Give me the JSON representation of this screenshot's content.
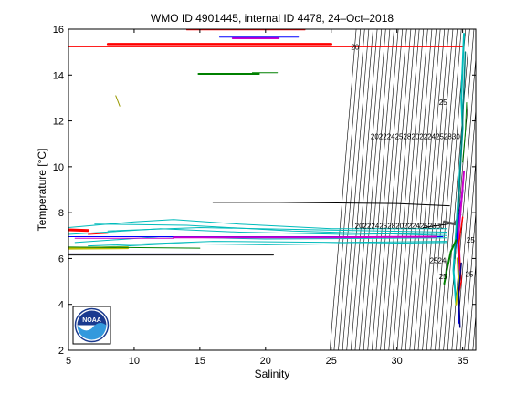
{
  "chart_data": {
    "type": "line",
    "title": "WMO ID 4901445, internal ID 4478, 24–Oct–2018",
    "xlabel": "Salinity",
    "ylabel": "Temperature [°C]",
    "xlim": [
      5,
      36
    ],
    "ylim": [
      2,
      16
    ],
    "xticks": [
      5,
      10,
      15,
      20,
      25,
      30,
      35
    ],
    "yticks": [
      2,
      4,
      6,
      8,
      10,
      12,
      14,
      16
    ],
    "grid": false,
    "legend": "none",
    "logo_text": "NOAA",
    "density_contours": {
      "labels": [
        "20",
        "22",
        "24",
        "25",
        "26",
        "27",
        "28"
      ],
      "x_bottom_start": 24.9,
      "x_bottom_step": 0.32,
      "x_top_start": 26.9,
      "x_top_step": 0.32,
      "count": 36
    },
    "contour_label_rows": [
      {
        "text": "2022242528202224252830",
        "x": 28.0,
        "y": 11.2
      },
      {
        "text": "2022242528202224252830",
        "x": 26.8,
        "y": 7.3
      },
      {
        "text": "20",
        "x": 26.5,
        "y": 15.1
      },
      {
        "text": "2524",
        "x": 32.5,
        "y": 5.8
      },
      {
        "text": "25",
        "x": 33.2,
        "y": 5.1
      },
      {
        "text": "25",
        "x": 33.2,
        "y": 12.7
      },
      {
        "text": "25",
        "x": 35.3,
        "y": 6.7
      },
      {
        "text": "25",
        "x": 35.2,
        "y": 5.2
      }
    ],
    "series": [
      {
        "color": "#ff0000",
        "width": 1.5,
        "points": [
          [
            5.0,
            15.25
          ],
          [
            35.0,
            15.25
          ]
        ]
      },
      {
        "color": "#ff0000",
        "width": 2.5,
        "points": [
          [
            8.0,
            15.35
          ],
          [
            25.0,
            15.35
          ]
        ]
      },
      {
        "color": "#ff0000",
        "width": 1.0,
        "points": [
          [
            14.0,
            15.97
          ],
          [
            23.0,
            15.97
          ]
        ]
      },
      {
        "color": "#cc00cc",
        "width": 2.0,
        "points": [
          [
            17.5,
            15.6
          ],
          [
            21.0,
            15.6
          ]
        ]
      },
      {
        "color": "#0000ff",
        "width": 1.0,
        "points": [
          [
            16.5,
            15.65
          ],
          [
            22.5,
            15.65
          ]
        ]
      },
      {
        "color": "#008000",
        "width": 2.0,
        "points": [
          [
            14.9,
            14.05
          ],
          [
            19.5,
            14.05
          ]
        ]
      },
      {
        "color": "#008000",
        "width": 1.0,
        "points": [
          [
            19.0,
            14.1
          ],
          [
            20.9,
            14.1
          ]
        ]
      },
      {
        "color": "#999900",
        "width": 1.0,
        "points": [
          [
            8.6,
            13.1
          ],
          [
            8.9,
            12.65
          ]
        ]
      },
      {
        "color": "#000000",
        "width": 1.0,
        "points": [
          [
            16.0,
            8.45
          ],
          [
            21.0,
            8.45
          ],
          [
            30.0,
            8.4
          ],
          [
            34.0,
            8.3
          ]
        ]
      },
      {
        "color": "#000000",
        "width": 1.0,
        "points": [
          [
            5.0,
            6.15
          ],
          [
            20.6,
            6.15
          ]
        ]
      },
      {
        "color": "#000080",
        "width": 1.0,
        "points": [
          [
            5.0,
            6.2
          ],
          [
            15.0,
            6.2
          ]
        ]
      },
      {
        "color": "#00bbbb",
        "width": 1.0,
        "points": [
          [
            5.0,
            7.35
          ],
          [
            10.0,
            7.6
          ],
          [
            13.0,
            7.7
          ],
          [
            18.0,
            7.5
          ],
          [
            25.0,
            7.3
          ],
          [
            33.8,
            7.3
          ]
        ]
      },
      {
        "color": "#00bbbb",
        "width": 1.0,
        "points": [
          [
            5.0,
            7.05
          ],
          [
            12.0,
            7.3
          ],
          [
            18.0,
            7.15
          ],
          [
            26.0,
            7.05
          ],
          [
            33.8,
            7.1
          ]
        ]
      },
      {
        "color": "#00bbbb",
        "width": 1.0,
        "points": [
          [
            5.5,
            6.7
          ],
          [
            12.0,
            6.95
          ],
          [
            20.0,
            6.85
          ],
          [
            33.8,
            6.9
          ]
        ]
      },
      {
        "color": "#00bbbb",
        "width": 1.0,
        "points": [
          [
            6.0,
            6.45
          ],
          [
            13.0,
            6.65
          ],
          [
            20.0,
            6.6
          ],
          [
            33.8,
            6.7
          ]
        ]
      },
      {
        "color": "#00bbbb",
        "width": 1.0,
        "points": [
          [
            7.0,
            7.5
          ],
          [
            14.0,
            7.45
          ],
          [
            22.0,
            7.2
          ],
          [
            33.8,
            7.0
          ]
        ]
      },
      {
        "color": "#00bbbb",
        "width": 1.0,
        "points": [
          [
            8.0,
            7.2
          ],
          [
            15.0,
            7.35
          ],
          [
            24.0,
            7.25
          ],
          [
            33.8,
            7.15
          ]
        ]
      },
      {
        "color": "#00bbbb",
        "width": 1.0,
        "points": [
          [
            6.5,
            6.55
          ],
          [
            16.0,
            6.75
          ],
          [
            26.0,
            6.7
          ],
          [
            33.8,
            6.75
          ]
        ]
      },
      {
        "color": "#0000ff",
        "width": 1.0,
        "points": [
          [
            5.0,
            6.95
          ],
          [
            33.5,
            6.95
          ]
        ]
      },
      {
        "color": "#cc00cc",
        "width": 2.0,
        "points": [
          [
            13.0,
            6.92
          ],
          [
            25.0,
            6.92
          ],
          [
            33.0,
            6.95
          ]
        ]
      },
      {
        "color": "#cc00cc",
        "width": 1.0,
        "points": [
          [
            5.5,
            6.88
          ],
          [
            13.0,
            6.88
          ]
        ]
      },
      {
        "color": "#ff0000",
        "width": 3.0,
        "points": [
          [
            5.0,
            7.25
          ],
          [
            6.5,
            7.22
          ]
        ]
      },
      {
        "color": "#ff0000",
        "width": 1.0,
        "points": [
          [
            6.5,
            7.05
          ],
          [
            8.0,
            7.1
          ]
        ]
      },
      {
        "color": "#bbbb00",
        "width": 3.0,
        "points": [
          [
            5.0,
            6.45
          ],
          [
            9.5,
            6.47
          ]
        ]
      },
      {
        "color": "#008000",
        "width": 1.0,
        "points": [
          [
            5.0,
            6.5
          ],
          [
            15.0,
            6.45
          ]
        ]
      },
      {
        "color": "#000000",
        "width": 1.0,
        "points": [
          [
            32.0,
            7.35
          ],
          [
            34.5,
            7.55
          ],
          [
            34.9,
            8.3
          ]
        ]
      },
      {
        "color": "#555555",
        "width": 3.0,
        "points": [
          [
            33.6,
            7.6
          ],
          [
            34.4,
            7.5
          ],
          [
            34.8,
            7.9
          ]
        ]
      },
      {
        "color": "#00bbbb",
        "width": 2.0,
        "points": [
          [
            35.1,
            15.8
          ],
          [
            34.9,
            13.0
          ],
          [
            35.0,
            11.7
          ],
          [
            34.7,
            9.0
          ],
          [
            34.5,
            7.2
          ],
          [
            34.3,
            5.5
          ],
          [
            34.5,
            4.0
          ]
        ]
      },
      {
        "color": "#008080",
        "width": 1.5,
        "points": [
          [
            35.2,
            15.0
          ],
          [
            35.0,
            12.0
          ],
          [
            34.8,
            9.5
          ],
          [
            34.6,
            7.5
          ],
          [
            34.4,
            6.0
          ]
        ]
      },
      {
        "color": "#0000ff",
        "width": 2.0,
        "points": [
          [
            35.0,
            9.0
          ],
          [
            34.8,
            8.0
          ],
          [
            34.6,
            7.0
          ],
          [
            34.7,
            6.0
          ],
          [
            34.7,
            3.2
          ]
        ]
      },
      {
        "color": "#cc00cc",
        "width": 2.0,
        "points": [
          [
            35.1,
            9.8
          ],
          [
            34.9,
            8.4
          ],
          [
            34.7,
            7.1
          ],
          [
            34.8,
            5.5
          ]
        ]
      },
      {
        "color": "#ff0000",
        "width": 1.5,
        "points": [
          [
            35.0,
            7.8
          ],
          [
            34.7,
            6.6
          ],
          [
            34.9,
            5.0
          ],
          [
            34.6,
            4.2
          ]
        ]
      },
      {
        "color": "#008000",
        "width": 2.0,
        "points": [
          [
            33.6,
            4.9
          ],
          [
            33.8,
            5.5
          ],
          [
            34.1,
            6.3
          ],
          [
            34.5,
            6.8
          ]
        ]
      },
      {
        "color": "#008000",
        "width": 1.0,
        "points": [
          [
            35.3,
            12.8
          ],
          [
            35.2,
            11.5
          ],
          [
            35.0,
            10.2
          ]
        ]
      },
      {
        "color": "#bbbb00",
        "width": 2.0,
        "points": [
          [
            34.5,
            4.0
          ],
          [
            34.7,
            5.0
          ],
          [
            34.6,
            6.0
          ]
        ]
      },
      {
        "color": "#000080",
        "width": 1.5,
        "points": [
          [
            34.9,
            5.8
          ],
          [
            34.7,
            4.5
          ],
          [
            34.8,
            3.0
          ]
        ]
      }
    ]
  }
}
